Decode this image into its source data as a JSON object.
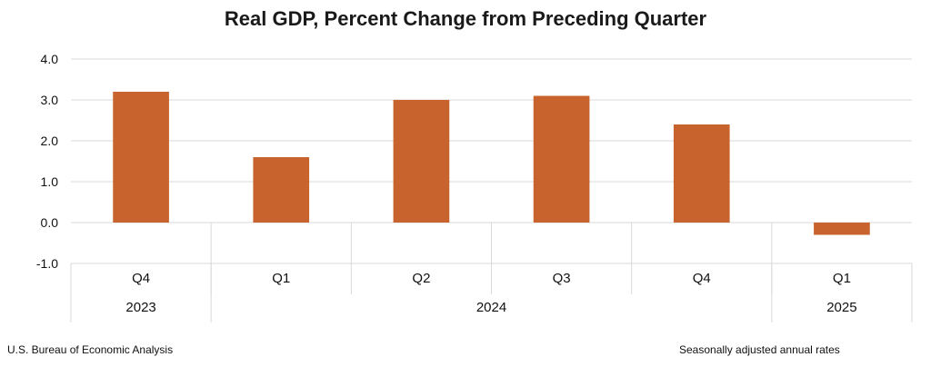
{
  "chart_data": {
    "type": "bar",
    "title": "Real GDP, Percent Change from Preceding Quarter",
    "categories": [
      "Q4",
      "Q1",
      "Q2",
      "Q3",
      "Q4",
      "Q1"
    ],
    "groups": [
      {
        "label": "2023",
        "span": 1
      },
      {
        "label": "2024",
        "span": 4
      },
      {
        "label": "2025",
        "span": 1
      }
    ],
    "values": [
      3.2,
      1.6,
      3.0,
      3.1,
      2.4,
      -0.3
    ],
    "ylim": [
      -1.0,
      4.0
    ],
    "yticks": [
      "-1.0",
      "0.0",
      "1.0",
      "2.0",
      "3.0",
      "4.0"
    ],
    "xlabel": "",
    "ylabel": "",
    "grid": true,
    "legend": "none",
    "bar_color": "#C8632D",
    "grid_color": "#D9D9D9"
  },
  "footer": {
    "source": "U.S. Bureau of Economic Analysis",
    "note": "Seasonally adjusted annual rates"
  }
}
